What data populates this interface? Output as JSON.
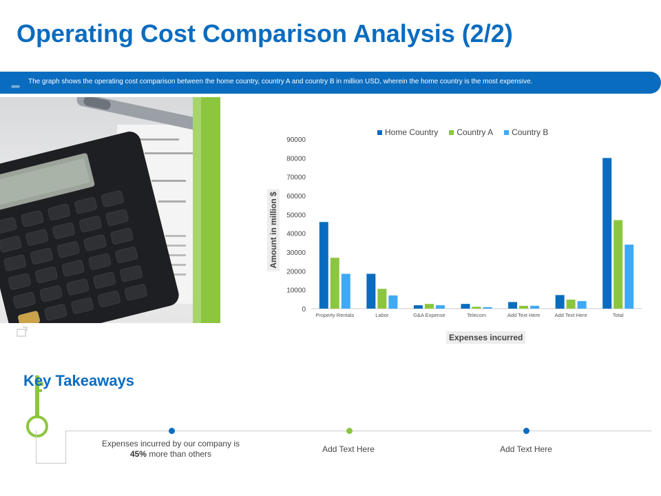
{
  "title": "Operating Cost Comparison Analysis (2/2)",
  "banner": {
    "icon": "»»»",
    "text": "The graph shows the operating cost comparison between the home country, country A and country B in million USD,  wherein the home country is the most expensive."
  },
  "colors": {
    "accent_blue": "#0a6cbf",
    "accent_green": "#8cc63f",
    "home_country": "#0a6cbf",
    "country_a": "#8cc63f",
    "country_b": "#3fa9f5"
  },
  "chart_data": {
    "type": "bar",
    "categories": [
      "Property Rentals",
      "Labor",
      "G&A Expense",
      "Telecom",
      "Add Text Here",
      "Add Text Here",
      "Total"
    ],
    "series": [
      {
        "name": "Home Country",
        "color": "#0a6cbf",
        "values": [
          46000,
          18500,
          1800,
          2500,
          3500,
          7200,
          80000
        ]
      },
      {
        "name": "Country A",
        "color": "#8cc63f",
        "values": [
          27000,
          10500,
          2500,
          1000,
          1500,
          4800,
          47000
        ]
      },
      {
        "name": "Country B",
        "color": "#3fa9f5",
        "values": [
          18500,
          7000,
          1800,
          800,
          1500,
          4000,
          34000
        ]
      }
    ],
    "yticks": [
      "0",
      "10000",
      "20000",
      "30000",
      "40000",
      "50000",
      "60000",
      "70000",
      "80000",
      "90000"
    ],
    "ylim": [
      0,
      90000
    ],
    "ylabel": "Amount in million $",
    "xlabel": "Expenses incurred",
    "legend_position": "top",
    "grid": false
  },
  "takeaways": {
    "title": "Key Takeaways",
    "items": [
      {
        "pre": "Expenses incurred by our company is",
        "bold": "45%",
        "post": " more than others",
        "dot_color": "#0a6cbf"
      },
      {
        "text": "Add Text Here",
        "dot_color": "#8cc63f"
      },
      {
        "text": "Add Text Here",
        "dot_color": "#0a6cbf"
      }
    ]
  }
}
